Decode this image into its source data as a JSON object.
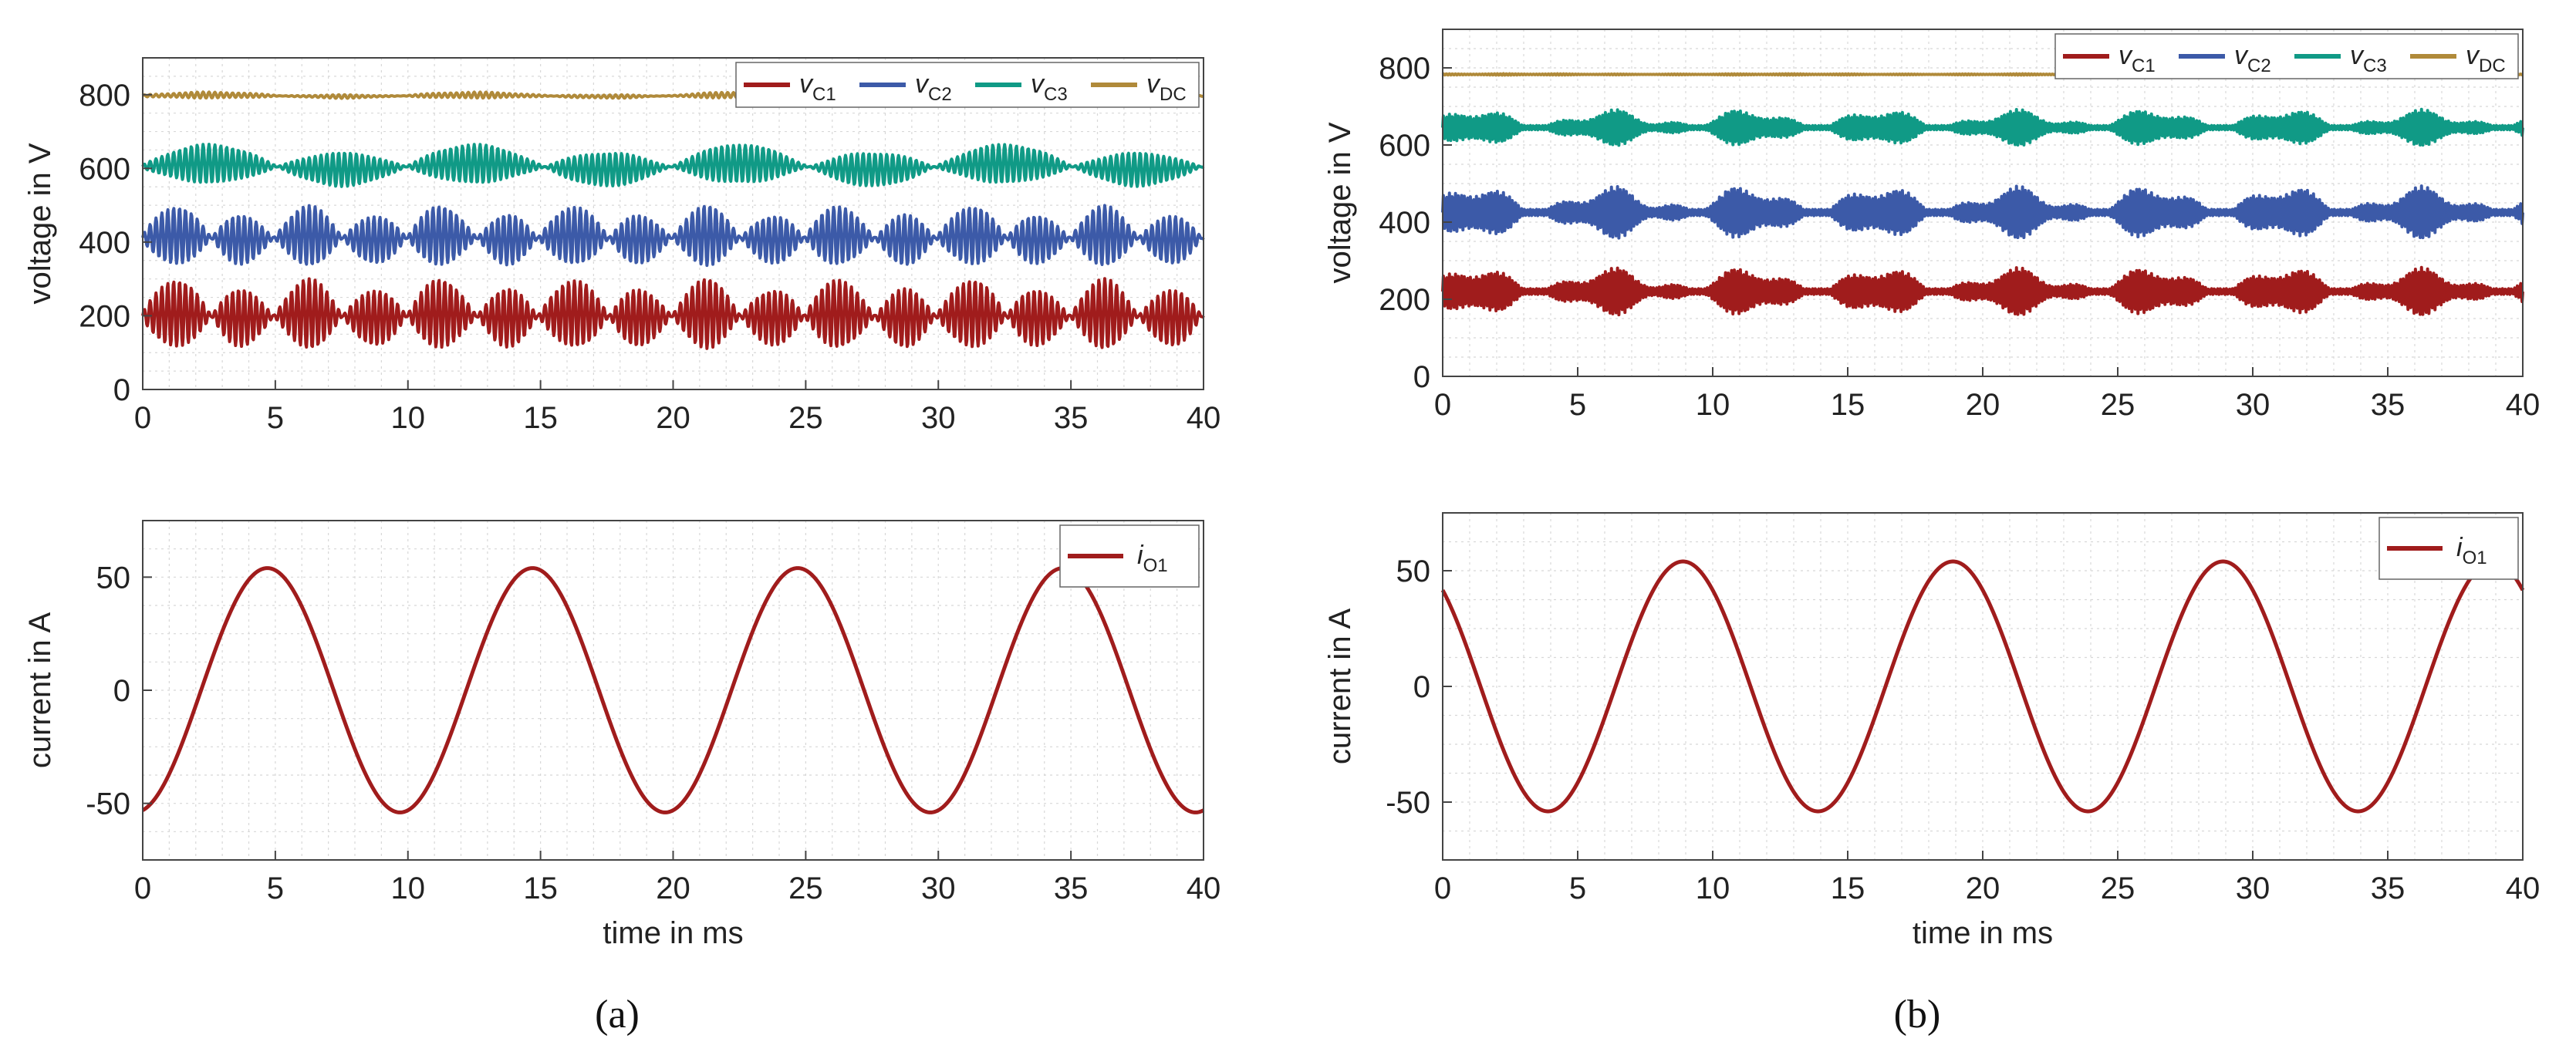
{
  "figure": {
    "captions": [
      "(a)",
      "(b)"
    ]
  },
  "colors": {
    "vC1": "#a01c1c",
    "vC2": "#3c5aa8",
    "vC3": "#109a86",
    "vDC": "#b08a3a",
    "iO1": "#a01c1c",
    "grid": "#d8d8d8",
    "axis": "#444444"
  },
  "chart_data": [
    {
      "panel": "a-top",
      "type": "line",
      "xlabel": "",
      "ylabel": "voltage in V",
      "xlim": [
        0,
        40
      ],
      "ylim": [
        0,
        900
      ],
      "xticks": [
        0,
        5,
        10,
        15,
        20,
        25,
        30,
        35,
        40
      ],
      "yticks": [
        0,
        200,
        400,
        600,
        800
      ],
      "grid": true,
      "legend_position": "top-right",
      "series": [
        {
          "name": "vC1",
          "label_main": "v",
          "label_sub": "C1",
          "color_key": "vC1",
          "mean": 200,
          "ripple": 14,
          "ripple_freq": 0.9,
          "beat_amp": 6,
          "beat_freq": 0.2
        },
        {
          "name": "vC2",
          "label_main": "v",
          "label_sub": "C2",
          "color_key": "vC2",
          "mean": 412,
          "ripple": 12,
          "ripple_freq": 0.9,
          "beat_amp": 6,
          "beat_freq": 0.2
        },
        {
          "name": "vC3",
          "label_main": "v",
          "label_sub": "C3",
          "color_key": "vC3",
          "mean": 605,
          "ripple": 6,
          "ripple_freq": 0.9,
          "beat_amp": 8,
          "beat_freq": 0.1
        },
        {
          "name": "vDC",
          "label_main": "v",
          "label_sub": "DC",
          "color_key": "vDC",
          "mean": 797,
          "ripple": 3,
          "ripple_freq": 0.9,
          "beat_amp": 2,
          "beat_freq": 0.1
        }
      ]
    },
    {
      "panel": "a-bottom",
      "type": "line",
      "xlabel": "time in ms",
      "ylabel": "current in A",
      "xlim": [
        0,
        40
      ],
      "ylim": [
        -75,
        75
      ],
      "xticks": [
        0,
        5,
        10,
        15,
        20,
        25,
        30,
        35,
        40
      ],
      "yticks": [
        -50,
        0,
        50
      ],
      "grid": true,
      "legend_position": "top-right",
      "series": [
        {
          "name": "iO1",
          "label_main": "i",
          "label_sub": "O1",
          "color_key": "iO1",
          "amplitude": 54,
          "period_ms": 10,
          "peak_at_ms": 4.7
        }
      ]
    },
    {
      "panel": "b-top",
      "type": "line",
      "xlabel": "",
      "ylabel": "voltage in V",
      "xlim": [
        0,
        40
      ],
      "ylim": [
        0,
        900
      ],
      "xticks": [
        0,
        5,
        10,
        15,
        20,
        25,
        30,
        35,
        40
      ],
      "yticks": [
        0,
        200,
        400,
        600,
        800
      ],
      "grid": true,
      "legend_position": "top-right",
      "series": [
        {
          "name": "vC1",
          "label_main": "v",
          "label_sub": "C1",
          "color_key": "vC1",
          "mean": 220,
          "ripple": 50,
          "ripple_freq": 1.8,
          "beat_amp": 0.45,
          "beat_freq": 0.2
        },
        {
          "name": "vC2",
          "label_main": "v",
          "label_sub": "C2",
          "color_key": "vC2",
          "mean": 425,
          "ripple": 55,
          "ripple_freq": 1.8,
          "beat_amp": 0.45,
          "beat_freq": 0.2
        },
        {
          "name": "vC3",
          "label_main": "v",
          "label_sub": "C3",
          "color_key": "vC3",
          "mean": 645,
          "ripple": 38,
          "ripple_freq": 1.8,
          "beat_amp": 0.45,
          "beat_freq": 0.2
        },
        {
          "name": "vDC",
          "label_main": "v",
          "label_sub": "DC",
          "color_key": "vDC",
          "mean": 783,
          "ripple": 2,
          "ripple_freq": 1.8,
          "beat_amp": 0.2,
          "beat_freq": 0.1
        }
      ]
    },
    {
      "panel": "b-bottom",
      "type": "line",
      "xlabel": "time in ms",
      "ylabel": "current in A",
      "xlim": [
        0,
        40
      ],
      "ylim": [
        -75,
        75
      ],
      "xticks": [
        0,
        5,
        10,
        15,
        20,
        25,
        30,
        35,
        40
      ],
      "yticks": [
        -50,
        0,
        50
      ],
      "grid": true,
      "legend_position": "top-right",
      "series": [
        {
          "name": "iO1",
          "label_main": "i",
          "label_sub": "O1",
          "color_key": "iO1",
          "amplitude": 54,
          "period_ms": 10,
          "peak_at_ms": 8.9
        }
      ]
    }
  ]
}
